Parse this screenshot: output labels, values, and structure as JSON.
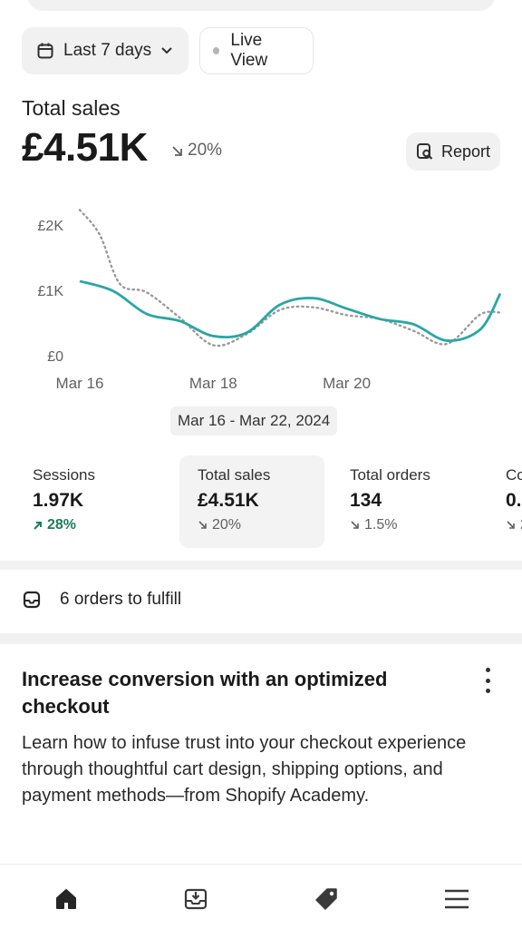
{
  "filters": {
    "range_label": "Last 7 days",
    "range_icon": "calendar-icon",
    "live_label": "Live View"
  },
  "summary": {
    "title": "Total sales",
    "value": "£4.51K",
    "change": "20%",
    "change_direction": "down",
    "report_label": "Report"
  },
  "chart_data": {
    "type": "line",
    "x_tick_labels": [
      "Mar 16",
      "Mar 18",
      "Mar 20"
    ],
    "y_tick_labels": [
      "£2K",
      "£1K",
      "£0"
    ],
    "ylim": [
      0,
      2000
    ],
    "date_range_label": "Mar 16 - Mar 22, 2024",
    "series": [
      {
        "style": "solid",
        "color": "#2aa6a6",
        "x": [
          0,
          0.5,
          1,
          1.5,
          2,
          2.5,
          3,
          3.5,
          4,
          4.5,
          5,
          5.5,
          6,
          6.3
        ],
        "values": [
          1140,
          990,
          640,
          530,
          300,
          350,
          780,
          880,
          720,
          560,
          480,
          230,
          400,
          950
        ]
      },
      {
        "style": "dotted",
        "color": "#9a9a9a",
        "x": [
          0,
          0.3,
          0.6,
          1,
          1.5,
          2,
          2.5,
          3,
          3.5,
          4,
          4.5,
          5,
          5.5,
          6,
          6.3
        ],
        "values": [
          2230,
          1850,
          1100,
          970,
          580,
          160,
          330,
          700,
          740,
          620,
          560,
          380,
          180,
          630,
          660
        ]
      }
    ]
  },
  "metrics": [
    {
      "label": "Sessions",
      "value": "1.97K",
      "change": "28%",
      "direction": "up"
    },
    {
      "label": "Total sales",
      "value": "£4.51K",
      "change": "20%",
      "direction": "down"
    },
    {
      "label": "Total orders",
      "value": "134",
      "change": "1.5%",
      "direction": "down"
    },
    {
      "label": "Co",
      "value": "0.",
      "change": "2",
      "direction": "down"
    }
  ],
  "tasks": {
    "fulfill_label": "6 orders to fulfill"
  },
  "card": {
    "title": "Increase conversion with an optimized checkout",
    "body": "Learn how to infuse trust into your checkout experience through thoughtful cart design, shipping options, and payment methods—from Shopify Academy."
  },
  "nav": {
    "items": [
      "home-icon",
      "orders-icon",
      "products-tag-icon",
      "menu-icon"
    ]
  },
  "colors": {
    "accent_line": "#2aa6a6",
    "positive": "#1a7f5a",
    "muted": "#616161"
  }
}
